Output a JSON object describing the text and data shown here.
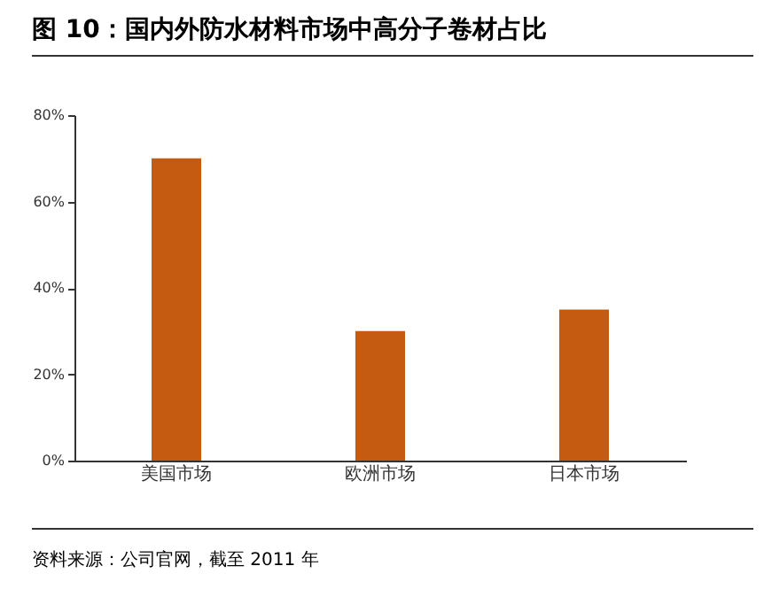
{
  "chart_data": {
    "type": "bar",
    "title": "图 10：国内外防水材料市场中高分子卷材占比",
    "categories": [
      "美国市场",
      "欧洲市场",
      "日本市场"
    ],
    "values": [
      70,
      30,
      35
    ],
    "color": "#c55a11",
    "ylim": [
      0,
      80
    ],
    "yticks": [
      {
        "value": 0,
        "label": "0%"
      },
      {
        "value": 20,
        "label": "20%"
      },
      {
        "value": 40,
        "label": "40%"
      },
      {
        "value": 60,
        "label": "60%"
      },
      {
        "value": 80,
        "label": "80%"
      }
    ],
    "grid": false,
    "annotations": [
      "资料来源：公司官网，截至 2011 年"
    ]
  }
}
